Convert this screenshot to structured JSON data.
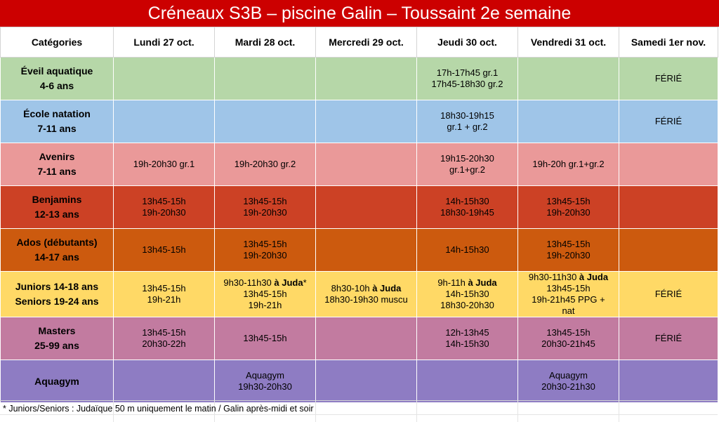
{
  "title": "Créneaux S3B – piscine Galin – Toussaint 2e semaine",
  "headers": [
    "Catégories",
    "Lundi 27 oct.",
    "Mardi 28 oct.",
    "Mercredi 29 oct.",
    "Jeudi 30 oct.",
    "Vendredi 31 oct.",
    "Samedi 1er nov."
  ],
  "rows": [
    {
      "name": "eveil",
      "color": "#b6d7a8",
      "category": [
        "Éveil aquatique",
        "4-6 ans"
      ],
      "cells": [
        [],
        [],
        [],
        [
          "17h-17h45 gr.1",
          "17h45-18h30 gr.2"
        ],
        [],
        [
          "FÉRIÉ"
        ]
      ]
    },
    {
      "name": "ecole",
      "color": "#9fc5e8",
      "category": [
        "École natation",
        "7-11 ans"
      ],
      "cells": [
        [],
        [],
        [],
        [
          "18h30-19h15",
          "gr.1 + gr.2"
        ],
        [],
        [
          "FÉRIÉ"
        ]
      ]
    },
    {
      "name": "avenirs",
      "color": "#ea9999",
      "category": [
        "Avenirs",
        "7-11 ans"
      ],
      "cells": [
        [
          "19h-20h30 gr.1"
        ],
        [
          "19h-20h30 gr.2"
        ],
        [],
        [
          "19h15-20h30",
          "gr.1+gr.2"
        ],
        [
          "19h-20h gr.1+gr.2"
        ],
        []
      ]
    },
    {
      "name": "benjamins",
      "color": "#cc4125",
      "category": [
        "Benjamins",
        "12-13 ans"
      ],
      "cells": [
        [
          "13h45-15h",
          "19h-20h30"
        ],
        [
          "13h45-15h",
          "19h-20h30"
        ],
        [],
        [
          "14h-15h30",
          "18h30-19h45"
        ],
        [
          "13h45-15h",
          "19h-20h30"
        ],
        []
      ]
    },
    {
      "name": "ados",
      "color": "#cc5a0e",
      "category": [
        "Ados (débutants)",
        "14-17 ans"
      ],
      "cells": [
        [
          "13h45-15h"
        ],
        [
          "13h45-15h",
          "19h-20h30"
        ],
        [],
        [
          "14h-15h30"
        ],
        [
          "13h45-15h",
          "19h-20h30"
        ],
        []
      ]
    },
    {
      "name": "juniors",
      "color": "#ffd966",
      "category": [
        "Juniors 14-18 ans",
        "Seniors 19-24 ans"
      ],
      "cells": [
        [
          "13h45-15h",
          "19h-21h"
        ],
        [
          {
            "t": "9h30-11h30 ",
            "b": "à Juda",
            "s": "*"
          },
          "13h45-15h",
          "19h-21h"
        ],
        [
          {
            "t": "8h30-10h ",
            "b": "à Juda"
          },
          "18h30-19h30 muscu"
        ],
        [
          {
            "t": "9h-11h ",
            "b": "à Juda"
          },
          "14h-15h30",
          "18h30-20h30"
        ],
        [
          {
            "t": "9h30-11h30 ",
            "b": "à Juda"
          },
          "13h45-15h",
          "19h-21h45 PPG +",
          "nat"
        ],
        [
          "FÉRIÉ"
        ]
      ]
    },
    {
      "name": "masters",
      "color": "#c27ba0",
      "category": [
        "Masters",
        "25-99 ans"
      ],
      "cells": [
        [
          "13h45-15h",
          "20h30-22h"
        ],
        [
          "13h45-15h"
        ],
        [],
        [
          "12h-13h45",
          "14h-15h30"
        ],
        [
          "13h45-15h",
          "20h30-21h45"
        ],
        [
          "FÉRIÉ"
        ]
      ]
    },
    {
      "name": "aquagym",
      "color": "#8e7cc3",
      "category": [
        "Aquagym"
      ],
      "cells": [
        [],
        [
          "Aquagym",
          "19h30-20h30"
        ],
        [],
        [],
        [
          "Aquagym",
          "20h30-21h30"
        ],
        []
      ]
    }
  ],
  "footnote": "* Juniors/Seniors : Judaïque 50 m uniquement le matin / Galin après-midi et soir"
}
